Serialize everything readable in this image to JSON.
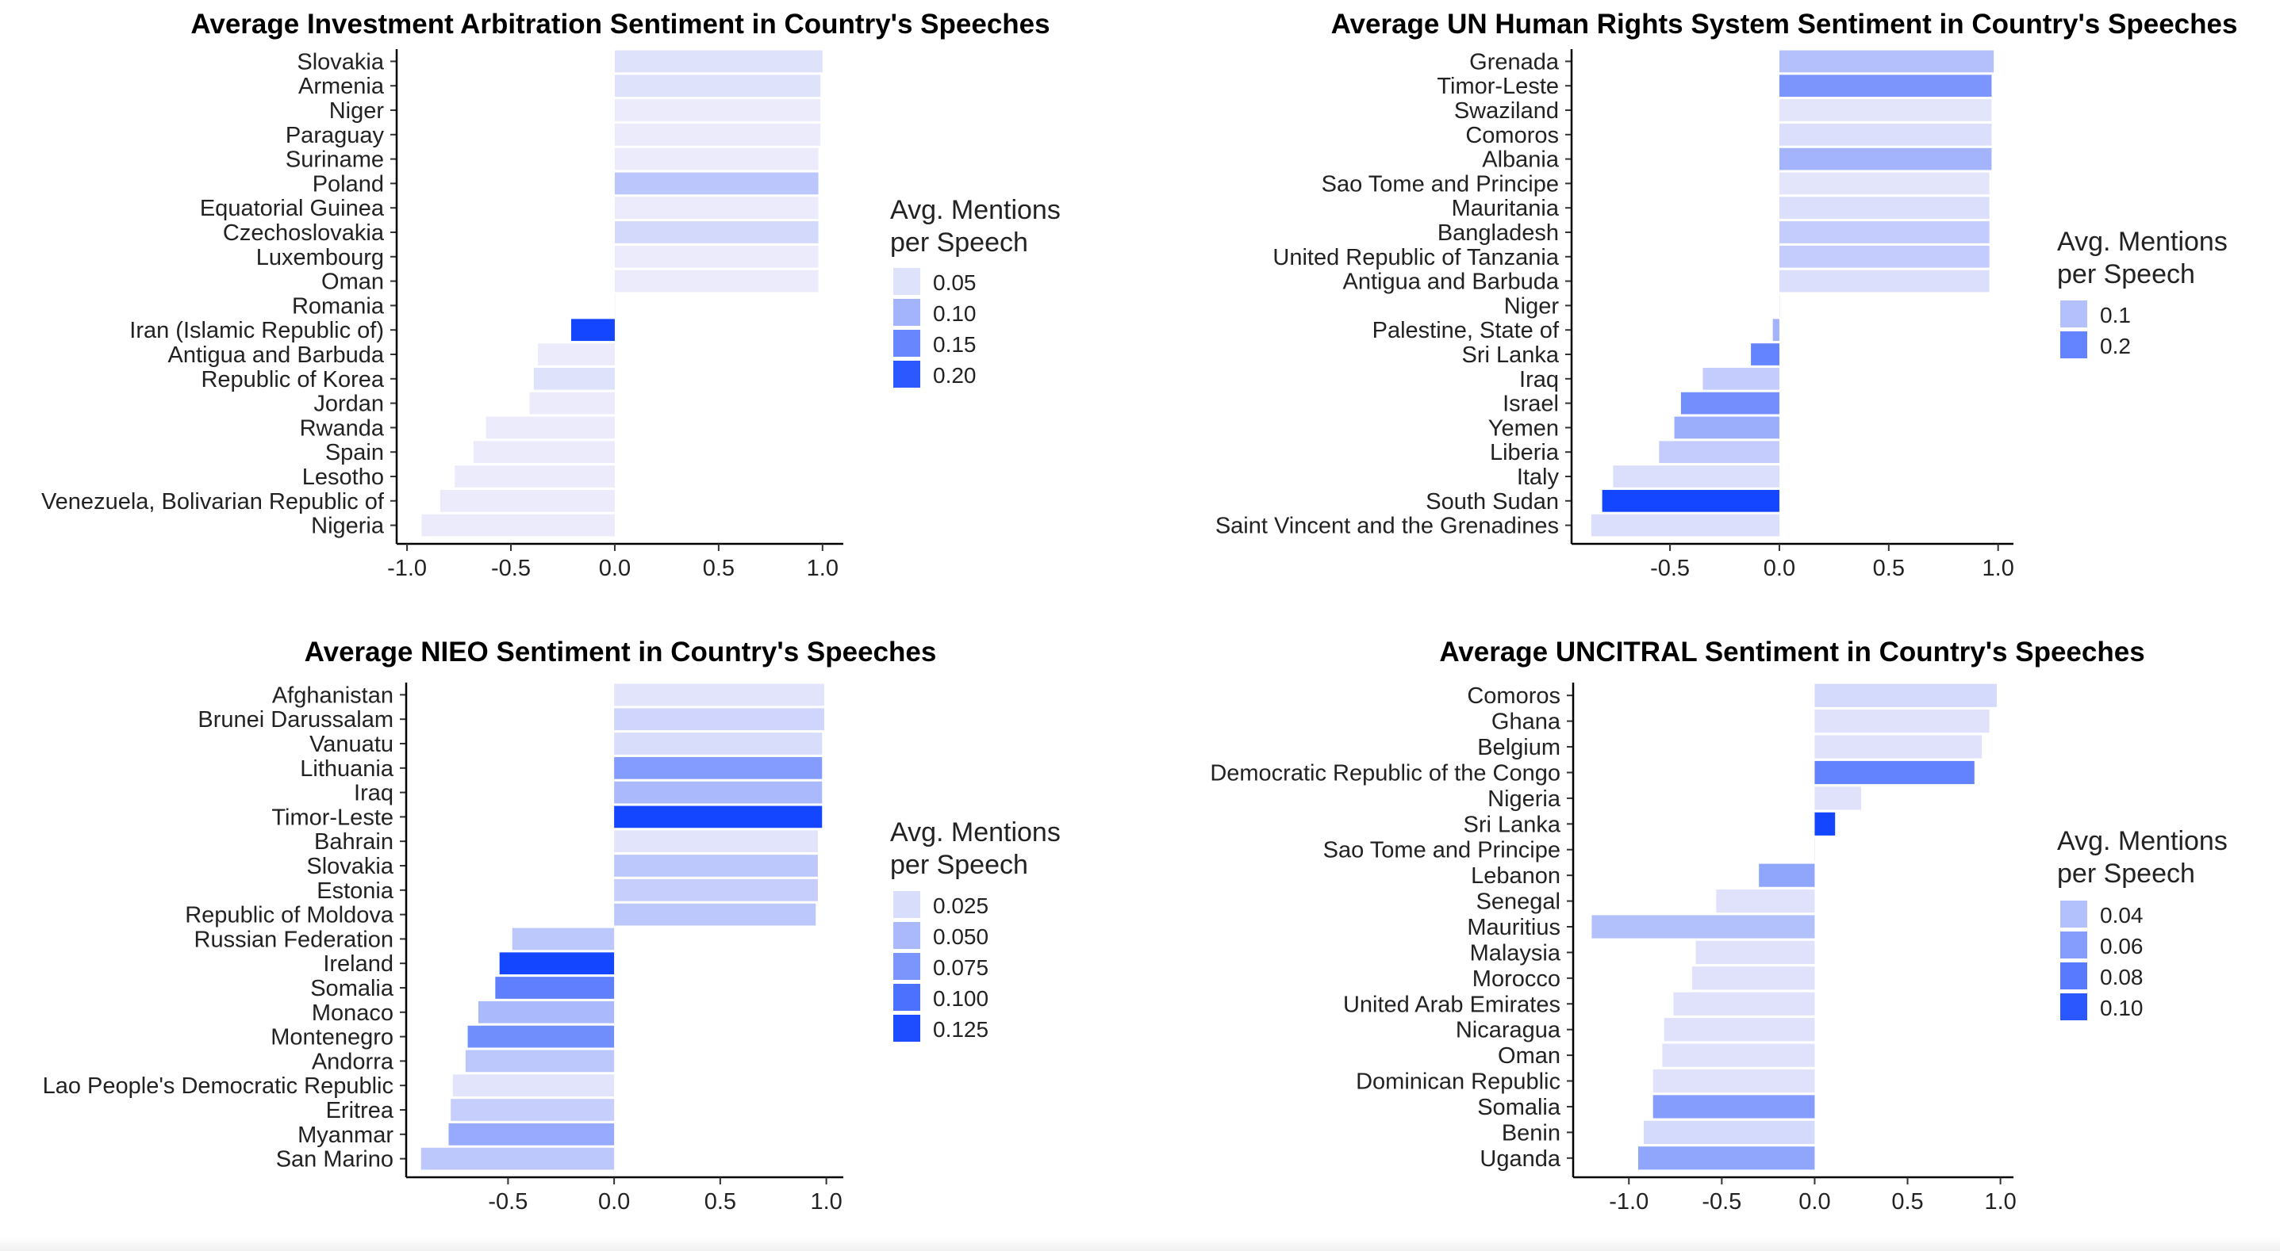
{
  "colors": {
    "low": "#ebebfb",
    "high": "#1446ff",
    "axis": "#000000",
    "text": "#222222"
  },
  "chart_data": [
    {
      "type": "bar",
      "orientation": "horizontal",
      "title": "Average Investment Arbitration Sentiment in Country's Speeches",
      "categories": [
        "Slovakia",
        "Armenia",
        "Niger",
        "Paraguay",
        "Suriname",
        "Poland",
        "Equatorial Guinea",
        "Czechoslovakia",
        "Luxembourg",
        "Oman",
        "Romania",
        "Iran (Islamic Republic of)",
        "Antigua and Barbuda",
        "Republic of Korea",
        "Jordan",
        "Rwanda",
        "Spain",
        "Lesotho",
        "Venezuela, Bolivarian Republic of",
        "Nigeria"
      ],
      "values": [
        1.0,
        0.99,
        0.99,
        0.99,
        0.98,
        0.98,
        0.98,
        0.98,
        0.98,
        0.98,
        0.0,
        -0.21,
        -0.37,
        -0.39,
        -0.41,
        -0.62,
        -0.68,
        -0.77,
        -0.84,
        -0.93
      ],
      "color_values": [
        0.05,
        0.05,
        0.04,
        0.04,
        0.04,
        0.08,
        0.04,
        0.06,
        0.04,
        0.04,
        0.04,
        0.22,
        0.04,
        0.05,
        0.04,
        0.04,
        0.04,
        0.04,
        0.04,
        0.04
      ],
      "xlim": [
        -1.05,
        1.1
      ],
      "xticks": [
        -1.0,
        -0.5,
        0.0,
        0.5,
        1.0
      ],
      "xtick_labels": [
        "-1.0",
        "-0.5",
        "0.0",
        "0.5",
        "1.0"
      ],
      "color_range": [
        0.04,
        0.22
      ],
      "legend": {
        "title_line1": "Avg. Mentions",
        "title_line2": " per Speech",
        "position": "right",
        "entries": [
          {
            "label": "0.05",
            "value": 0.05
          },
          {
            "label": "0.10",
            "value": 0.1
          },
          {
            "label": "0.15",
            "value": 0.15
          },
          {
            "label": "0.20",
            "value": 0.2
          }
        ]
      }
    },
    {
      "type": "bar",
      "orientation": "horizontal",
      "title": "Average UN Human Rights System Sentiment in Country's Speeches",
      "categories": [
        "Grenada",
        "Timor-Leste",
        "Swaziland",
        "Comoros",
        "Albania",
        "Sao Tome and Principe",
        "Mauritania",
        "Bangladesh",
        "United Republic of Tanzania",
        "Antigua and Barbuda",
        "Niger",
        "Palestine, State of",
        "Sri Lanka",
        "Iraq",
        "Israel",
        "Yemen",
        "Liberia",
        "Italy",
        "South Sudan",
        "Saint Vincent and the Grenadines"
      ],
      "values": [
        0.98,
        0.97,
        0.97,
        0.97,
        0.97,
        0.96,
        0.96,
        0.96,
        0.96,
        0.96,
        0.0,
        -0.03,
        -0.13,
        -0.35,
        -0.45,
        -0.48,
        -0.55,
        -0.76,
        -0.81,
        -0.86
      ],
      "color_values": [
        0.1,
        0.17,
        0.04,
        0.05,
        0.12,
        0.04,
        0.05,
        0.08,
        0.08,
        0.05,
        0.05,
        0.12,
        0.2,
        0.08,
        0.18,
        0.13,
        0.08,
        0.05,
        0.3,
        0.05
      ],
      "xlim": [
        -0.95,
        1.07
      ],
      "xticks": [
        -0.5,
        0.0,
        0.5,
        1.0
      ],
      "xtick_labels": [
        "-0.5",
        "0.0",
        "0.5",
        "1.0"
      ],
      "color_range": [
        0.03,
        0.3
      ],
      "legend": {
        "title_line1": "Avg. Mentions",
        "title_line2": " per Speech",
        "position": "right",
        "entries": [
          {
            "label": "0.1",
            "value": 0.1
          },
          {
            "label": "0.2",
            "value": 0.2
          }
        ]
      }
    },
    {
      "type": "bar",
      "orientation": "horizontal",
      "title": "Average NIEO Sentiment in Country's Speeches",
      "categories": [
        "Afghanistan",
        "Brunei Darussalam",
        "Vanuatu",
        "Lithuania",
        "Iraq",
        "Timor-Leste",
        "Bahrain",
        "Slovakia",
        "Estonia",
        "Republic of Moldova",
        "Russian Federation",
        "Ireland",
        "Somalia",
        "Monaco",
        "Montenegro",
        "Andorra",
        "Lao People's Democratic Republic",
        "Eritrea",
        "Myanmar",
        "San Marino"
      ],
      "values": [
        0.99,
        0.99,
        0.98,
        0.98,
        0.98,
        0.98,
        0.96,
        0.96,
        0.96,
        0.95,
        -0.48,
        -0.54,
        -0.56,
        -0.64,
        -0.69,
        -0.7,
        -0.76,
        -0.77,
        -0.78,
        -0.91
      ],
      "color_values": [
        0.02,
        0.03,
        0.025,
        0.07,
        0.05,
        0.13,
        0.02,
        0.04,
        0.035,
        0.04,
        0.04,
        0.13,
        0.09,
        0.05,
        0.08,
        0.04,
        0.02,
        0.035,
        0.06,
        0.04
      ],
      "xlim": [
        -0.98,
        1.08
      ],
      "xticks": [
        -0.5,
        0.0,
        0.5,
        1.0
      ],
      "xtick_labels": [
        "-0.5",
        "0.0",
        "0.5",
        "1.0"
      ],
      "color_range": [
        0.015,
        0.13
      ],
      "legend": {
        "title_line1": "Avg. Mentions",
        "title_line2": " per Speech",
        "position": "right",
        "entries": [
          {
            "label": "0.025",
            "value": 0.025
          },
          {
            "label": "0.050",
            "value": 0.05
          },
          {
            "label": "0.075",
            "value": 0.075
          },
          {
            "label": "0.100",
            "value": 0.1
          },
          {
            "label": "0.125",
            "value": 0.125
          }
        ]
      }
    },
    {
      "type": "bar",
      "orientation": "horizontal",
      "title": "Average UNCITRAL Sentiment in Country's Speeches",
      "categories": [
        "Comoros",
        "Ghana",
        "Belgium",
        "Democratic Republic of the Congo",
        "Nigeria",
        "Sri Lanka",
        "Sao Tome and Principe",
        "Lebanon",
        "Senegal",
        "Mauritius",
        "Malaysia",
        "Morocco",
        "United Arab Emirates",
        "Nicaragua",
        "Oman",
        "Dominican Republic",
        "Somalia",
        "Benin",
        "Uganda"
      ],
      "values": [
        0.98,
        0.94,
        0.9,
        0.86,
        0.25,
        0.11,
        0.0,
        -0.3,
        -0.53,
        -1.2,
        -0.64,
        -0.66,
        -0.76,
        -0.81,
        -0.82,
        -0.87,
        -0.87,
        -0.92,
        -0.95
      ],
      "color_values": [
        0.025,
        0.02,
        0.02,
        0.075,
        0.02,
        0.11,
        0.02,
        0.055,
        0.02,
        0.04,
        0.02,
        0.02,
        0.02,
        0.02,
        0.02,
        0.02,
        0.06,
        0.025,
        0.055
      ],
      "xlim": [
        -1.3,
        1.07
      ],
      "xticks": [
        -1.0,
        -0.5,
        0.0,
        0.5,
        1.0
      ],
      "xtick_labels": [
        "-1.0",
        "-0.5",
        "0.0",
        "0.5",
        "1.0"
      ],
      "color_range": [
        0.015,
        0.11
      ],
      "legend": {
        "title_line1": "Avg. Mentions",
        "title_line2": " per Speech",
        "position": "right",
        "entries": [
          {
            "label": "0.04",
            "value": 0.04
          },
          {
            "label": "0.06",
            "value": 0.06
          },
          {
            "label": "0.08",
            "value": 0.08
          },
          {
            "label": "0.10",
            "value": 0.1
          }
        ]
      }
    }
  ]
}
